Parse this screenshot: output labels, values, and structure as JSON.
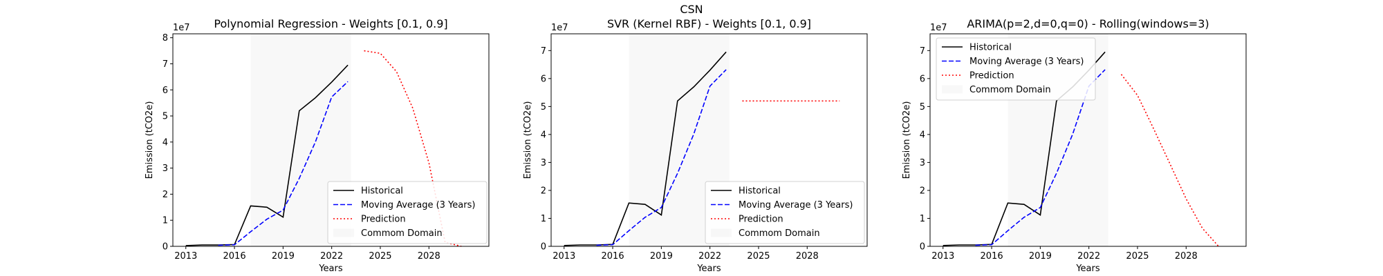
{
  "figure": {
    "suptitle": "CSN"
  },
  "chart_data": [
    {
      "type": "line",
      "title": "Polynomial Regression - Weights [0.1, 0.9]",
      "xlabel": "Years",
      "ylabel": "Emission (tCO2e)",
      "offset_text": "1e7",
      "xlim": [
        2012.2,
        2031.7
      ],
      "ylim": [
        0,
        8.15
      ],
      "xticks": [
        2013,
        2016,
        2019,
        2022,
        2025,
        2028
      ],
      "yticks": [
        0,
        1,
        2,
        3,
        4,
        5,
        6,
        7,
        8
      ],
      "common_domain": [
        2017,
        2023.2
      ],
      "legend_position": "lower-right",
      "series": [
        {
          "name": "Historical",
          "style": "solid",
          "color": "#000000",
          "x": [
            2013,
            2014,
            2015,
            2016,
            2017,
            2018,
            2019,
            2020,
            2021,
            2022,
            2023
          ],
          "y": [
            0.03,
            0.05,
            0.05,
            0.07,
            1.55,
            1.5,
            1.12,
            5.2,
            5.7,
            6.3,
            6.95
          ]
        },
        {
          "name": "Moving Average (3 Years)",
          "style": "dashed",
          "color": "#0000ff",
          "x": [
            2015,
            2016,
            2017,
            2018,
            2019,
            2020,
            2021,
            2022,
            2023
          ],
          "y": [
            0.04,
            0.06,
            0.56,
            1.04,
            1.39,
            2.61,
            4.01,
            5.73,
            6.32
          ]
        },
        {
          "name": "Prediction",
          "style": "dotted",
          "color": "#ff0000",
          "x": [
            2024,
            2025,
            2026,
            2027,
            2028,
            2029,
            2030
          ],
          "y": [
            7.5,
            7.4,
            6.7,
            5.3,
            3.2,
            0.15,
            0.0
          ]
        }
      ],
      "legend_entries": [
        "Historical",
        "Moving Average (3 Years)",
        "Prediction",
        "Commom Domain"
      ]
    },
    {
      "type": "line",
      "title": "SVR (Kernel RBF) - Weights [0.1, 0.9]",
      "xlabel": "Years",
      "ylabel": "Emission (tCO2e)",
      "offset_text": "1e7",
      "xlim": [
        2012.2,
        2031.7
      ],
      "ylim": [
        0,
        7.6
      ],
      "xticks": [
        2013,
        2016,
        2019,
        2022,
        2025,
        2028
      ],
      "yticks": [
        0,
        1,
        2,
        3,
        4,
        5,
        6,
        7
      ],
      "common_domain": [
        2017,
        2023.2
      ],
      "legend_position": "lower-right",
      "series": [
        {
          "name": "Historical",
          "style": "solid",
          "color": "#000000",
          "x": [
            2013,
            2014,
            2015,
            2016,
            2017,
            2018,
            2019,
            2020,
            2021,
            2022,
            2023
          ],
          "y": [
            0.03,
            0.05,
            0.05,
            0.07,
            1.55,
            1.5,
            1.12,
            5.2,
            5.7,
            6.3,
            6.95
          ]
        },
        {
          "name": "Moving Average (3 Years)",
          "style": "dashed",
          "color": "#0000ff",
          "x": [
            2015,
            2016,
            2017,
            2018,
            2019,
            2020,
            2021,
            2022,
            2023
          ],
          "y": [
            0.04,
            0.06,
            0.56,
            1.04,
            1.39,
            2.61,
            4.01,
            5.73,
            6.32
          ]
        },
        {
          "name": "Prediction",
          "style": "dotted",
          "color": "#ff0000",
          "x": [
            2024,
            2025,
            2026,
            2027,
            2028,
            2029,
            2030
          ],
          "y": [
            5.2,
            5.2,
            5.2,
            5.2,
            5.2,
            5.2,
            5.2
          ]
        }
      ],
      "legend_entries": [
        "Historical",
        "Moving Average (3 Years)",
        "Prediction",
        "Commom Domain"
      ]
    },
    {
      "type": "line",
      "title": "ARIMA(p=2,d=0,q=0) - Rolling(windows=3)",
      "xlabel": "Years",
      "ylabel": "Emission (tCO2e)",
      "offset_text": "1e7",
      "xlim": [
        2012.2,
        2031.7
      ],
      "ylim": [
        0,
        7.6
      ],
      "xticks": [
        2013,
        2016,
        2019,
        2022,
        2025,
        2028
      ],
      "yticks": [
        0,
        1,
        2,
        3,
        4,
        5,
        6,
        7
      ],
      "common_domain": [
        2017,
        2023.2
      ],
      "legend_position": "upper-left",
      "series": [
        {
          "name": "Historical",
          "style": "solid",
          "color": "#000000",
          "x": [
            2013,
            2014,
            2015,
            2016,
            2017,
            2018,
            2019,
            2020,
            2021,
            2022,
            2023
          ],
          "y": [
            0.03,
            0.05,
            0.05,
            0.07,
            1.55,
            1.5,
            1.12,
            5.2,
            5.7,
            6.3,
            6.95
          ]
        },
        {
          "name": "Moving Average (3 Years)",
          "style": "dashed",
          "color": "#0000ff",
          "x": [
            2015,
            2016,
            2017,
            2018,
            2019,
            2020,
            2021,
            2022,
            2023
          ],
          "y": [
            0.04,
            0.06,
            0.56,
            1.04,
            1.39,
            2.61,
            4.01,
            5.73,
            6.32
          ]
        },
        {
          "name": "Prediction",
          "style": "dotted",
          "color": "#ff0000",
          "x": [
            2024,
            2025,
            2026,
            2027,
            2028,
            2029,
            2030
          ],
          "y": [
            6.15,
            5.4,
            4.2,
            2.95,
            1.7,
            0.65,
            0.0
          ]
        }
      ],
      "legend_entries": [
        "Historical",
        "Moving Average (3 Years)",
        "Prediction",
        "Commom Domain"
      ]
    }
  ]
}
